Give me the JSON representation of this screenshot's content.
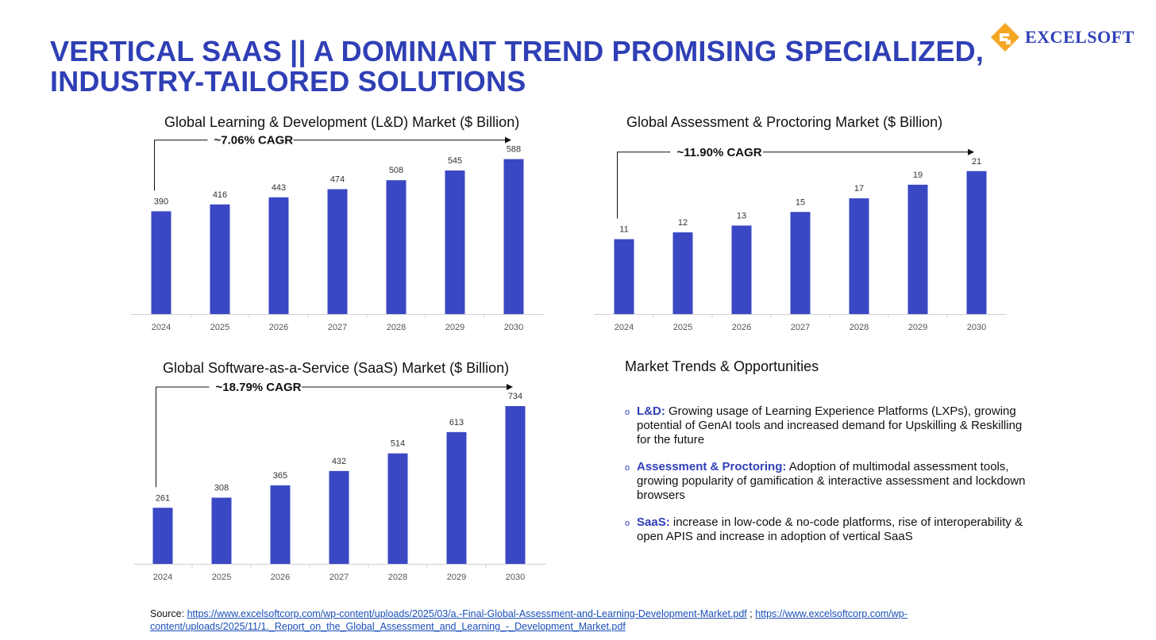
{
  "title": "VERTICAL SAAS || A DOMINANT TREND PROMISING SPECIALIZED, INDUSTRY-TAILORED SOLUTIONS",
  "logo": {
    "text": "EXCELSOFT",
    "icon": "excelsoft-logo-icon",
    "color": "#f5a623"
  },
  "accent_color": "#3a48c4",
  "chart_data": [
    {
      "type": "bar",
      "title": "Global Learning & Development (L&D) Market ($ Billion)",
      "categories": [
        "2024",
        "2025",
        "2026",
        "2027",
        "2028",
        "2029",
        "2030"
      ],
      "values": [
        390,
        416,
        443,
        474,
        508,
        545,
        588
      ],
      "annotation": "~7.06% CAGR",
      "ylim": [
        0,
        620
      ],
      "xlabel": "",
      "ylabel": ""
    },
    {
      "type": "bar",
      "title": "Global Assessment & Proctoring Market ($ Billion)",
      "categories": [
        "2024",
        "2025",
        "2026",
        "2027",
        "2028",
        "2029",
        "2030"
      ],
      "values": [
        11,
        12,
        13,
        15,
        17,
        19,
        21
      ],
      "annotation": "~11.90% CAGR",
      "ylim": [
        0,
        24
      ],
      "xlabel": "",
      "ylabel": ""
    },
    {
      "type": "bar",
      "title": "Global Software-as-a-Service (SaaS) Market ($ Billion)",
      "categories": [
        "2024",
        "2025",
        "2026",
        "2027",
        "2028",
        "2029",
        "2030"
      ],
      "values": [
        261,
        308,
        365,
        432,
        514,
        613,
        734
      ],
      "annotation": "~18.79% CAGR",
      "ylim": [
        0,
        760
      ],
      "xlabel": "",
      "ylabel": ""
    }
  ],
  "trends": {
    "title": "Market Trends & Opportunities",
    "items": [
      {
        "label": "L&D:",
        "text": " Growing usage of Learning Experience Platforms (LXPs), growing potential of GenAI tools and increased demand for Upskilling & Reskilling for the future"
      },
      {
        "label": "Assessment & Proctoring:",
        "text": " Adoption of multimodal assessment tools, growing popularity of gamification & interactive assessment and lockdown browsers"
      },
      {
        "label": "SaaS:",
        "text": " increase in low-code & no-code platforms, rise of interoperability & open APIS and increase in adoption of vertical SaaS"
      }
    ],
    "bullet": "o"
  },
  "source": {
    "label": "Source: ",
    "link1": "https://www.excelsoftcorp.com/wp-content/uploads/2025/03/a.-Final-Global-Assessment-and-Learning-Development-Market.pdf",
    "separator": " ; ",
    "link2": "https://www.excelsoftcorp.com/wp-content/uploads/2025/11/1._Report_on_the_Global_Assessment_and_Learning_-_Development_Market.pdf"
  }
}
